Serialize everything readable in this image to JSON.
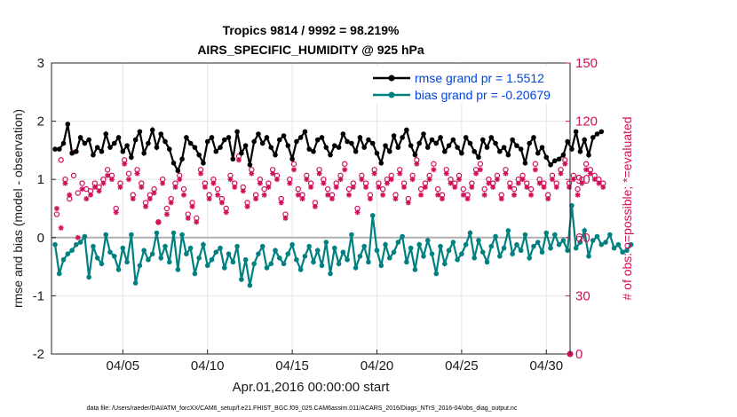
{
  "chart_data": {
    "type": "line",
    "title": [
      "Tropics 9814 / 9992 = 98.219%",
      "AIRS_SPECIFIC_HUMIDITY @ 925 hPa"
    ],
    "xlabel": "Apr.01,2016 00:00:00 start",
    "ylabel": "rmse and bias (model - observation)",
    "ylabel_right": "# of obs: o=possible; *=evaluated",
    "ylim": [
      -2,
      3
    ],
    "ylim_right": [
      0,
      150
    ],
    "xlim_days": [
      0,
      30.4
    ],
    "yticks": [
      "-2",
      "-1",
      "0",
      "1",
      "2",
      "3"
    ],
    "yticks_right": [
      "0",
      "30",
      "60",
      "90",
      "120",
      "150"
    ],
    "xticks": [
      {
        "day": 4,
        "label": "04/05"
      },
      {
        "day": 9,
        "label": "04/10"
      },
      {
        "day": 14,
        "label": "04/15"
      },
      {
        "day": 19,
        "label": "04/20"
      },
      {
        "day": 24,
        "label": "04/25"
      },
      {
        "day": 29,
        "label": "04/30"
      }
    ],
    "grid": true,
    "zero_line": true,
    "legend": {
      "placement": "top-right",
      "entries": [
        "rmse grand pr = 1.5512",
        "bias grand pr = -0.20679"
      ]
    },
    "colors": {
      "rmse": "#000000",
      "bias": "#008080",
      "obs": "#d0105a",
      "zero": "#b0b0b0"
    },
    "step_days": 0.25,
    "series": [
      {
        "name": "rmse",
        "axis": "left",
        "values": [
          1.52,
          1.52,
          1.62,
          1.95,
          1.45,
          1.48,
          1.72,
          1.62,
          1.68,
          1.42,
          1.55,
          1.48,
          1.78,
          1.55,
          1.62,
          1.72,
          1.48,
          1.58,
          1.38,
          1.68,
          1.82,
          1.45,
          1.62,
          1.85,
          1.55,
          1.78,
          1.65,
          1.52,
          1.28,
          1.15,
          1.35,
          1.72,
          1.62,
          1.55,
          1.42,
          1.28,
          1.65,
          1.72,
          1.48,
          1.55,
          1.68,
          1.72,
          1.35,
          1.82,
          1.45,
          1.58,
          1.25,
          1.65,
          1.78,
          1.62,
          1.72,
          1.55,
          1.42,
          1.68,
          1.75,
          1.58,
          1.35,
          1.65,
          1.72,
          1.82,
          1.52,
          1.48,
          1.68,
          1.72,
          1.55,
          1.42,
          1.58,
          1.55,
          1.78,
          1.65,
          1.62,
          1.48,
          1.72,
          1.55,
          1.68,
          1.62,
          1.45,
          1.28,
          1.58,
          1.48,
          1.75,
          1.55,
          1.72,
          1.85,
          1.58,
          1.42,
          1.62,
          1.78,
          1.55,
          1.68,
          1.62,
          1.72,
          1.48,
          1.58,
          1.68,
          1.55,
          1.45,
          1.72,
          1.62,
          1.48,
          1.38,
          1.68,
          1.55,
          1.72,
          1.62,
          1.48,
          1.55,
          1.42,
          1.68,
          1.58,
          1.52,
          1.28,
          1.62,
          1.72,
          1.45,
          1.55,
          1.38,
          1.25,
          1.32,
          1.35,
          1.42,
          1.65,
          1.52,
          1.82,
          1.48,
          1.68,
          1.42,
          1.72,
          1.78,
          1.82
        ]
      },
      {
        "name": "bias",
        "axis": "left",
        "values": [
          -0.12,
          -0.62,
          -0.38,
          -0.28,
          -0.22,
          -0.12,
          -0.08,
          0.02,
          -0.68,
          -0.15,
          -0.35,
          -0.45,
          0.05,
          -0.25,
          -0.32,
          -0.55,
          -0.18,
          -0.42,
          0.05,
          -0.78,
          -0.48,
          -0.22,
          -0.38,
          -0.28,
          0.08,
          -0.35,
          -0.15,
          -0.42,
          0.08,
          -0.55,
          0.05,
          -0.28,
          -0.18,
          -0.62,
          -0.35,
          -0.12,
          -0.48,
          -0.38,
          -0.25,
          -0.18,
          -0.52,
          -0.28,
          -0.42,
          -0.15,
          -0.72,
          -0.38,
          -0.82,
          -0.45,
          -0.28,
          -0.15,
          -0.52,
          -0.45,
          -0.22,
          -0.35,
          -0.45,
          -0.28,
          -0.12,
          -0.38,
          -0.55,
          -0.32,
          -0.15,
          -0.42,
          -0.22,
          -0.48,
          -0.08,
          -0.62,
          -0.18,
          -0.45,
          -0.25,
          -0.38,
          0.05,
          -0.52,
          -0.32,
          -0.15,
          -0.42,
          0.38,
          -0.22,
          -0.48,
          -0.12,
          -0.35,
          -0.25,
          -0.08,
          0.02,
          -0.42,
          -0.18,
          -0.55,
          -0.12,
          -0.32,
          -0.05,
          -0.28,
          -0.62,
          -0.15,
          -0.45,
          -0.22,
          -0.08,
          -0.38,
          -0.28,
          -0.12,
          0.08,
          -0.35,
          -0.05,
          -0.25,
          -0.42,
          -0.15,
          0.02,
          -0.32,
          -0.18,
          0.12,
          -0.28,
          -0.12,
          -0.22,
          0.05,
          -0.35,
          -0.15,
          -0.08,
          -0.25,
          0.08,
          -0.18,
          0.05,
          -0.12,
          -0.05,
          -0.22,
          0.55,
          -0.18,
          -0.08,
          0.12,
          -0.32,
          -0.05,
          0.02,
          -0.12,
          -0.08,
          0.05,
          -0.18,
          -0.12,
          -0.25,
          -0.22,
          -0.12
        ]
      },
      {
        "name": "obs_possible",
        "axis": "right",
        "marker": "o",
        "values": [
          72,
          100,
          90,
          80,
          92,
          83,
          88,
          85,
          84,
          88,
          86,
          90,
          95,
          92,
          75,
          88,
          100,
          93,
          82,
          95,
          88,
          78,
          82,
          85,
          68,
          90,
          75,
          80,
          88,
          92,
          85,
          72,
          78,
          70,
          95,
          88,
          82,
          90,
          85,
          80,
          75,
          92,
          88,
          102,
          86,
          78,
          95,
          82,
          90,
          85,
          88,
          95,
          92,
          80,
          72,
          90,
          98,
          85,
          82,
          92,
          88,
          78,
          95,
          90,
          85,
          82,
          88,
          92,
          98,
          85,
          88,
          75,
          92,
          88,
          82,
          95,
          88,
          85,
          90,
          92,
          82,
          95,
          88,
          80,
          92,
          100,
          85,
          88,
          92,
          98,
          85,
          82,
          95,
          90,
          88,
          92,
          85,
          82,
          88,
          95,
          98,
          85,
          90,
          88,
          92,
          82,
          95,
          88,
          85,
          90,
          92,
          88,
          85,
          98,
          90,
          88,
          82,
          92,
          88,
          95,
          100,
          88,
          92,
          85,
          90,
          98,
          95,
          92,
          90,
          88
        ]
      },
      {
        "name": "obs_evaluated",
        "axis": "right",
        "marker": "*",
        "values": [
          75,
          65,
          88,
          82,
          104,
          60,
          85,
          80,
          82,
          86,
          84,
          88,
          92,
          90,
          73,
          86,
          98,
          90,
          80,
          93,
          86,
          76,
          80,
          83,
          68,
          88,
          72,
          78,
          86,
          90,
          82,
          70,
          76,
          68,
          93,
          86,
          80,
          88,
          82,
          78,
          73,
          90,
          86,
          100,
          84,
          76,
          93,
          80,
          88,
          82,
          86,
          93,
          90,
          78,
          70,
          88,
          95,
          82,
          80,
          90,
          86,
          76,
          93,
          88,
          82,
          80,
          86,
          90,
          95,
          82,
          86,
          73,
          90,
          86,
          80,
          93,
          86,
          82,
          88,
          90,
          80,
          93,
          86,
          78,
          90,
          98,
          82,
          86,
          90,
          95,
          82,
          80,
          93,
          88,
          86,
          90,
          82,
          80,
          86,
          93,
          95,
          82,
          88,
          86,
          90,
          80,
          93,
          86,
          82,
          88,
          90,
          86,
          82,
          95,
          88,
          86,
          80,
          90,
          86,
          93,
          98,
          86,
          90,
          82,
          88,
          95,
          93,
          90,
          88,
          86
        ]
      }
    ]
  },
  "footer": "data file: /Users/raeder/DAI/ATM_forcXX/CAM6_setup/f.e21.FHIST_BGC.f09_025.CAM6assim.011/ACARS_2016/Diags_NTrS_2016-04/obs_diag_output.nc"
}
